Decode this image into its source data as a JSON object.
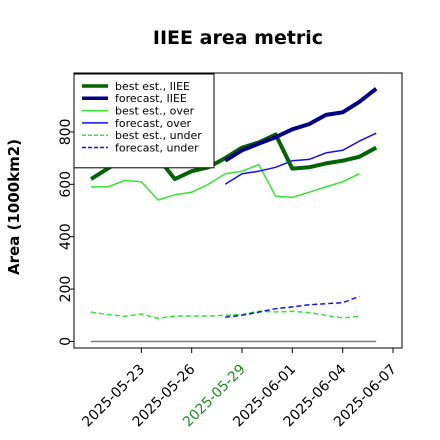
{
  "chart_data": {
    "type": "line",
    "title": "IIEE area metric",
    "ylabel": "Area (1000km2)",
    "xlabel": "",
    "ylim": [
      -25,
      1025
    ],
    "yticks": [
      0,
      200,
      400,
      600,
      800
    ],
    "x": [
      "2025-05-20",
      "2025-05-21",
      "2025-05-22",
      "2025-05-23",
      "2025-05-24",
      "2025-05-25",
      "2025-05-26",
      "2025-05-27",
      "2025-05-28",
      "2025-05-29",
      "2025-05-30",
      "2025-05-31",
      "2025-06-01",
      "2025-06-02",
      "2025-06-03",
      "2025-06-04",
      "2025-06-05",
      "2025-06-06",
      "2025-06-07"
    ],
    "xticks": [
      "2025-05-23",
      "2025-05-26",
      "2025-05-29",
      "2025-06-01",
      "2025-06-04",
      "2025-06-07"
    ],
    "highlight_tick": "2025-05-29",
    "highlight_color": "#228b22",
    "grid": false,
    "legend_position": "upper-left",
    "series": [
      {
        "name": "best est., IIEE",
        "color": "#006400",
        "style": "solid",
        "width": 4,
        "values": [
          620,
          660,
          700,
          750,
          700,
          620,
          650,
          665,
          700,
          740,
          760,
          790,
          660,
          665,
          680,
          690,
          705,
          740,
          null
        ]
      },
      {
        "name": "forecast, IIEE",
        "color": "#00008b",
        "style": "solid",
        "width": 4,
        "values": [
          null,
          null,
          null,
          null,
          null,
          null,
          null,
          null,
          690,
          730,
          755,
          780,
          810,
          830,
          865,
          875,
          915,
          965,
          null
        ]
      },
      {
        "name": "best est., over",
        "color": "#32e632",
        "style": "solid",
        "width": 1.5,
        "values": [
          590,
          590,
          615,
          610,
          540,
          560,
          570,
          600,
          640,
          650,
          675,
          555,
          550,
          570,
          590,
          610,
          640,
          null,
          null
        ]
      },
      {
        "name": "forecast, over",
        "color": "#1010ee",
        "style": "solid",
        "width": 1.5,
        "values": [
          null,
          null,
          null,
          null,
          null,
          null,
          null,
          null,
          600,
          640,
          650,
          665,
          690,
          695,
          720,
          730,
          765,
          795,
          null
        ]
      },
      {
        "name": "best est., under",
        "color": "#32e632",
        "style": "dashed",
        "width": 1.5,
        "values": [
          112,
          103,
          96,
          105,
          88,
          97,
          97,
          97,
          100,
          103,
          115,
          113,
          115,
          110,
          100,
          90,
          96,
          null,
          null
        ]
      },
      {
        "name": "forecast, under",
        "color": "#1010ee",
        "style": "dashed",
        "width": 1.5,
        "values": [
          null,
          null,
          null,
          null,
          null,
          null,
          null,
          null,
          93,
          100,
          112,
          125,
          132,
          140,
          144,
          148,
          172,
          null,
          null
        ]
      },
      {
        "name": "",
        "color": "#808080",
        "style": "solid",
        "width": 1.5,
        "legend": false,
        "values": [
          0,
          0,
          0,
          0,
          0,
          0,
          0,
          0,
          0,
          0,
          0,
          0,
          0,
          0,
          0,
          0,
          0,
          0,
          null
        ]
      }
    ]
  }
}
